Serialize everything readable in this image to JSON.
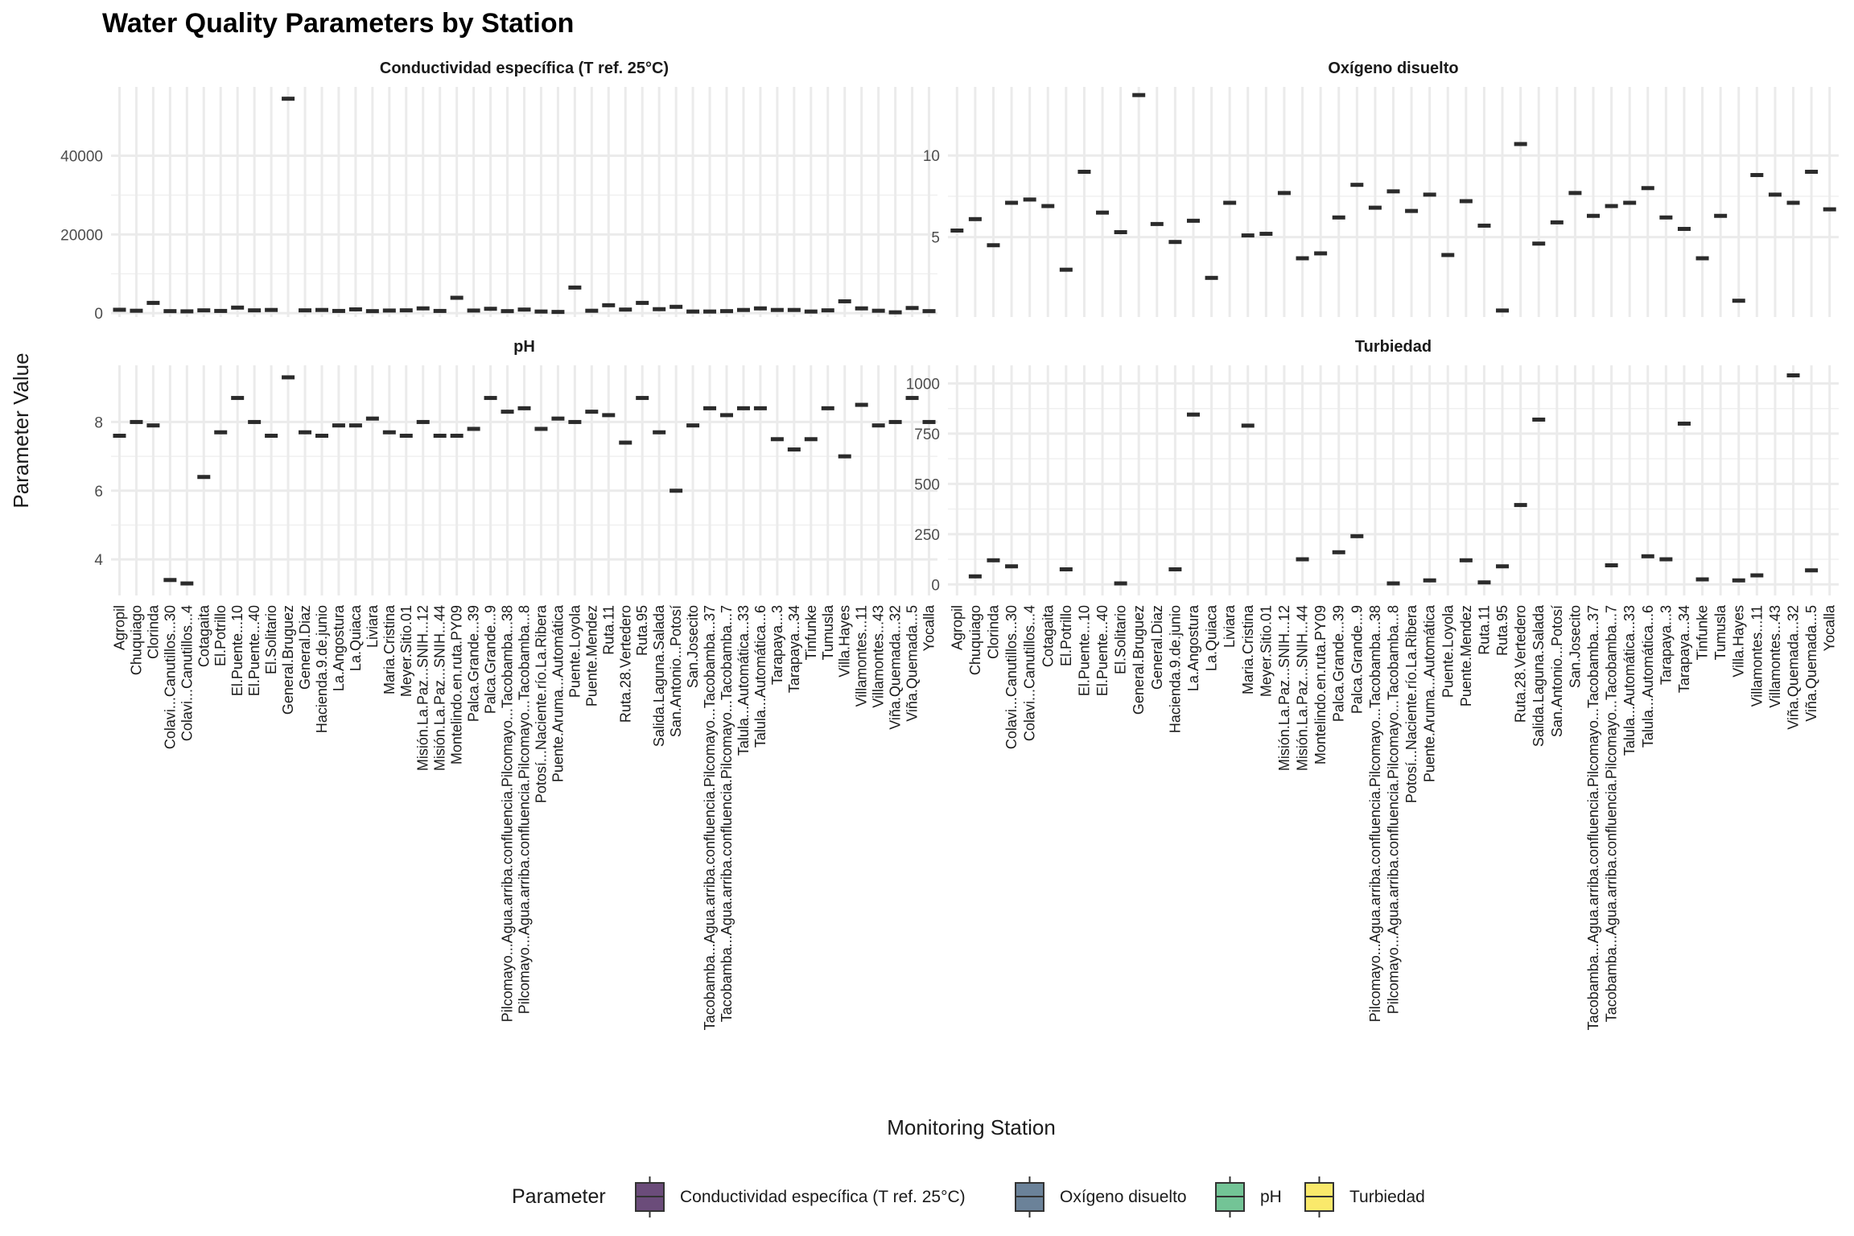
{
  "chart_data": {
    "type": "boxplot",
    "title": "Water Quality Parameters by Station",
    "xlabel": "Monitoring Station",
    "ylabel": "Parameter Value",
    "legend": {
      "title": "Parameter",
      "position": "bottom",
      "entries": [
        "Conductividad específica (T ref. 25°C)",
        "Oxígeno disuelto",
        "pH",
        "Turbiedad"
      ],
      "colors": [
        "#6b4c7a",
        "#6b8299",
        "#73c496",
        "#fae96b"
      ]
    },
    "grid": true,
    "panels": [
      {
        "title": "Conductividad específica (T ref. 25°C)",
        "ylim": [
          -1000,
          57500
        ],
        "yticks": [
          0,
          20000,
          40000
        ],
        "ytick_labels": [
          "0",
          "20000",
          "40000"
        ],
        "categories": [
          "Agropil",
          "Chuquiago",
          "Clorinda",
          "Colavi...Canutillos...30",
          "Colavi...Canutillos...4",
          "Cotagaita",
          "El.Potrillo",
          "El.Puente...10",
          "El.Puente...40",
          "El.Solitario",
          "General.Bruguez",
          "General.Diaz",
          "Hacienda.9.de.junio",
          "La.Angostura",
          "La.Quiaca",
          "Liviara",
          "Maria.Cristina",
          "Meyer.Sitio.01",
          "Misión.La.Paz...SNIH...12",
          "Misión.La.Paz...SNIH...44",
          "Montelindo.en.ruta.PY09",
          "Palca.Grande...39",
          "Palca.Grande...9",
          "Pilcomayo...Agua.arriba.confluencia.Pilcomayo...Tacobamba...38",
          "Pilcomayo...Agua.arriba.confluencia.Pilcomayo...Tacobamba...8",
          "Potosí...Naciente.río.La.Ribera",
          "Puente.Aruma...Automática",
          "Puente.Loyola",
          "Puente.Mendez",
          "Ruta.11",
          "Ruta.28.Vertedero",
          "Ruta.95",
          "Salida.Laguna.Salada",
          "San.Antonio...Potosí",
          "San.Josecito",
          "Tacobamba...Agua.arriba.confluencia.Pilcomayo...Tacobamba...37",
          "Tacobamba...Agua.arriba.confluencia.Pilcomayo...Tacobamba...7",
          "Talula...Automática...33",
          "Talula...Automática...6",
          "Tarapaya...3",
          "Tarapaya...34",
          "Tinfunke",
          "Tumusla",
          "Villa.Hayes",
          "Villamontes...11",
          "Villamontes...43",
          "Viña.Quemada...32",
          "Viña.Quemada...5",
          "Yocalla"
        ],
        "values": [
          850,
          600,
          2600,
          500,
          450,
          700,
          550,
          1400,
          700,
          800,
          54500,
          700,
          800,
          550,
          950,
          500,
          650,
          700,
          1200,
          550,
          3900,
          650,
          1100,
          500,
          900,
          400,
          300,
          6500,
          600,
          2000,
          900,
          2600,
          1000,
          1600,
          400,
          400,
          500,
          800,
          1200,
          800,
          800,
          400,
          700,
          3000,
          1200,
          600,
          200,
          1300,
          500
        ]
      },
      {
        "title": "Oxígeno disuelto",
        "ylim": [
          0.1,
          14.2
        ],
        "yticks": [
          5,
          10
        ],
        "ytick_labels": [
          "5",
          "10"
        ],
        "categories": [
          "Agropil",
          "Chuquiago",
          "Clorinda",
          "Colavi...Canutillos...30",
          "Colavi...Canutillos...4",
          "Cotagaita",
          "El.Potrillo",
          "El.Puente...10",
          "El.Puente...40",
          "El.Solitario",
          "General.Bruguez",
          "General.Diaz",
          "Hacienda.9.de.junio",
          "La.Angostura",
          "La.Quiaca",
          "Liviara",
          "Maria.Cristina",
          "Meyer.Sitio.01",
          "Misión.La.Paz...SNIH...12",
          "Misión.La.Paz...SNIH...44",
          "Montelindo.en.ruta.PY09",
          "Palca.Grande...39",
          "Palca.Grande...9",
          "Pilcomayo...Agua.arriba.confluencia.Pilcomayo...Tacobamba...38",
          "Pilcomayo...Agua.arriba.confluencia.Pilcomayo...Tacobamba...8",
          "Potosí...Naciente.río.La.Ribera",
          "Puente.Aruma...Automática",
          "Puente.Loyola",
          "Puente.Mendez",
          "Ruta.11",
          "Ruta.28.Vertedero",
          "Ruta.95",
          "Salida.Laguna.Salada",
          "San.Antonio...Potosí",
          "San.Josecito",
          "Tacobamba...Agua.arriba.confluencia.Pilcomayo...Tacobamba...37",
          "Tacobamba...Agua.arriba.confluencia.Pilcomayo...Tacobamba...7",
          "Talula...Automática...33",
          "Talula...Automática...6",
          "Tarapaya...3",
          "Tarapaya...34",
          "Tinfunke",
          "Tumusla",
          "Villa.Hayes",
          "Villamontes...11",
          "Villamontes...43",
          "Viña.Quemada...32",
          "Viña.Quemada...5",
          "Yocalla"
        ],
        "values": [
          5.4,
          6.1,
          4.5,
          7.1,
          7.3,
          6.9,
          3.0,
          9.0,
          6.5,
          5.3,
          13.7,
          5.8,
          4.7,
          6.0,
          2.5,
          7.1,
          5.1,
          5.2,
          7.7,
          3.7,
          4.0,
          6.2,
          8.2,
          6.8,
          7.8,
          6.6,
          7.6,
          3.9,
          7.2,
          5.7,
          0.5,
          10.7,
          4.6,
          5.9,
          7.7,
          6.3,
          6.9,
          7.1,
          8.0,
          6.2,
          5.5,
          3.7,
          6.3,
          1.1,
          8.8,
          7.6,
          7.1,
          9.0,
          6.7
        ]
      },
      {
        "title": "pH",
        "ylim": [
          2.95,
          9.65
        ],
        "yticks": [
          4,
          6,
          8
        ],
        "ytick_labels": [
          "4",
          "6",
          "8"
        ],
        "categories": [
          "Agropil",
          "Chuquiago",
          "Clorinda",
          "Colavi...Canutillos...30",
          "Colavi...Canutillos...4",
          "Cotagaita",
          "El.Potrillo",
          "El.Puente...10",
          "El.Puente...40",
          "El.Solitario",
          "General.Bruguez",
          "General.Diaz",
          "Hacienda.9.de.junio",
          "La.Angostura",
          "La.Quiaca",
          "Liviara",
          "Maria.Cristina",
          "Meyer.Sitio.01",
          "Misión.La.Paz...SNIH...12",
          "Misión.La.Paz...SNIH...44",
          "Montelindo.en.ruta.PY09",
          "Palca.Grande...39",
          "Palca.Grande...9",
          "Pilcomayo...Agua.arriba.confluencia.Pilcomayo...Tacobamba...38",
          "Pilcomayo...Agua.arriba.confluencia.Pilcomayo...Tacobamba...8",
          "Potosí...Naciente.río.La.Ribera",
          "Puente.Aruma...Automática",
          "Puente.Loyola",
          "Puente.Mendez",
          "Ruta.11",
          "Ruta.28.Vertedero",
          "Ruta.95",
          "Salida.Laguna.Salada",
          "San.Antonio...Potosí",
          "San.Josecito",
          "Tacobamba...Agua.arriba.confluencia.Pilcomayo...Tacobamba...37",
          "Tacobamba...Agua.arriba.confluencia.Pilcomayo...Tacobamba...7",
          "Talula...Automática...33",
          "Talula...Automática...6",
          "Tarapaya...3",
          "Tarapaya...34",
          "Tinfunke",
          "Tumusla",
          "Villa.Hayes",
          "Villamontes...11",
          "Villamontes...43",
          "Viña.Quemada...32",
          "Viña.Quemada...5",
          "Yocalla"
        ],
        "values": [
          7.6,
          8.0,
          7.9,
          3.4,
          3.3,
          6.4,
          7.7,
          8.7,
          8.0,
          7.6,
          9.3,
          7.7,
          7.6,
          7.9,
          7.9,
          8.1,
          7.7,
          7.6,
          8.0,
          7.6,
          7.6,
          7.8,
          8.7,
          8.3,
          8.4,
          7.8,
          8.1,
          8.0,
          8.3,
          8.2,
          7.4,
          8.7,
          7.7,
          6.0,
          7.9,
          8.4,
          8.2,
          8.4,
          8.4,
          7.5,
          7.2,
          7.5,
          8.4,
          7.0,
          8.5,
          7.9,
          8.0,
          8.7,
          8.0
        ]
      },
      {
        "title": "Turbiedad",
        "ylim": [
          -55,
          1090
        ],
        "yticks": [
          0,
          250,
          500,
          750,
          1000
        ],
        "ytick_labels": [
          "0",
          "250",
          "500",
          "750",
          "1000"
        ],
        "categories": [
          "Agropil",
          "Chuquiago",
          "Clorinda",
          "Colavi...Canutillos...30",
          "Colavi...Canutillos...4",
          "Cotagaita",
          "El.Potrillo",
          "El.Puente...10",
          "El.Puente...40",
          "El.Solitario",
          "General.Bruguez",
          "General.Diaz",
          "Hacienda.9.de.junio",
          "La.Angostura",
          "La.Quiaca",
          "Liviara",
          "Maria.Cristina",
          "Meyer.Sitio.01",
          "Misión.La.Paz...SNIH...12",
          "Misión.La.Paz...SNIH...44",
          "Montelindo.en.ruta.PY09",
          "Palca.Grande...39",
          "Palca.Grande...9",
          "Pilcomayo...Agua.arriba.confluencia.Pilcomayo...Tacobamba...38",
          "Pilcomayo...Agua.arriba.confluencia.Pilcomayo...Tacobamba...8",
          "Potosí...Naciente.río.La.Ribera",
          "Puente.Aruma...Automática",
          "Puente.Loyola",
          "Puente.Mendez",
          "Ruta.11",
          "Ruta.95",
          "Ruta.28.Vertedero",
          "Salida.Laguna.Salada",
          "San.Antonio...Potosí",
          "San.Josecito",
          "Tacobamba...Agua.arriba.confluencia.Pilcomayo...Tacobamba...37",
          "Tacobamba...Agua.arriba.confluencia.Pilcomayo...Tacobamba...7",
          "Talula...Automática...33",
          "Talula...Automática...6",
          "Tarapaya...3",
          "Tarapaya...34",
          "Tinfunke",
          "Tumusla",
          "Villa.Hayes",
          "Villamontes...11",
          "Villamontes...43",
          "Viña.Quemada...32",
          "Viña.Quemada...5",
          "Yocalla"
        ],
        "values": [
          null,
          40,
          120,
          90,
          null,
          null,
          75,
          null,
          null,
          5,
          null,
          null,
          75,
          845,
          null,
          null,
          790,
          null,
          null,
          125,
          null,
          160,
          240,
          null,
          5,
          null,
          20,
          null,
          120,
          10,
          90,
          395,
          820,
          null,
          null,
          null,
          95,
          null,
          140,
          125,
          800,
          25,
          null,
          20,
          45,
          null,
          1040,
          70,
          null
        ]
      }
    ]
  }
}
